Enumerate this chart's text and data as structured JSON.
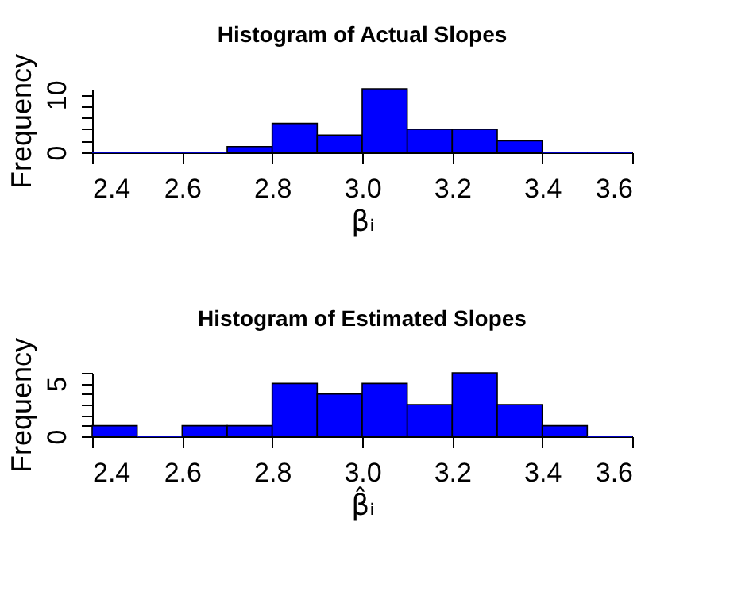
{
  "chart_data": [
    {
      "type": "histogram",
      "title": "Histogram of Actual Slopes",
      "xlabel": "βᵢ",
      "ylabel": "Frequency",
      "bins": [
        2.4,
        2.5,
        2.6,
        2.7,
        2.8,
        2.9,
        3.0,
        3.1,
        3.2,
        3.3,
        3.4,
        3.5,
        3.6
      ],
      "values": [
        0,
        0,
        0,
        1,
        5,
        3,
        11,
        4,
        4,
        2,
        0,
        0
      ],
      "color": "#0000ff",
      "xlim": [
        2.4,
        3.6
      ],
      "xticks": [
        2.4,
        2.6,
        2.8,
        {
          "value": 3,
          "label": "3.0"
        },
        3.2,
        3.4,
        3.6
      ],
      "ylim": [
        0,
        11
      ],
      "yticks": [
        0,
        {
          "value": 2,
          "label": null
        },
        {
          "value": 4,
          "label": null
        },
        {
          "value": 6,
          "label": null
        },
        {
          "value": 8,
          "label": null
        },
        10
      ],
      "grid": false
    },
    {
      "type": "histogram",
      "title": "Histogram of Estimated Slopes",
      "xlabel": "β̂ᵢ",
      "ylabel": "Frequency",
      "bins": [
        2.4,
        2.5,
        2.6,
        2.7,
        2.8,
        2.9,
        3.0,
        3.1,
        3.2,
        3.3,
        3.4,
        3.5,
        3.6
      ],
      "values": [
        1,
        0,
        1,
        1,
        5,
        4,
        5,
        3,
        6,
        3,
        1,
        0
      ],
      "color": "#0000ff",
      "xlim": [
        2.4,
        3.6
      ],
      "xticks": [
        2.4,
        2.6,
        2.8,
        {
          "value": 3,
          "label": "3.0"
        },
        3.2,
        3.4,
        3.6
      ],
      "ylim": [
        0,
        6
      ],
      "yticks": [
        0,
        {
          "value": 1,
          "label": null
        },
        {
          "value": 2,
          "label": null
        },
        {
          "value": 3,
          "label": null
        },
        {
          "value": 4,
          "label": null
        },
        5,
        {
          "value": 6,
          "label": null
        }
      ],
      "grid": false
    }
  ]
}
